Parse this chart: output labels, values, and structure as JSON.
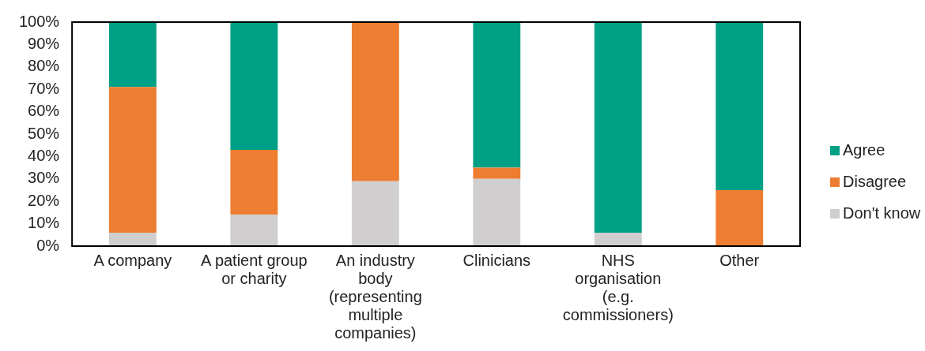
{
  "chart_data": {
    "type": "bar",
    "stacked": true,
    "categories": [
      "A company",
      "A patient group or charity",
      "An industry body (representing multiple companies)",
      "Clinicians",
      "NHS organisation (e.g. commissioners)",
      "Other"
    ],
    "series": [
      {
        "name": "Don't know",
        "color": "#d0cece",
        "values": [
          6,
          14,
          29,
          30,
          6,
          0
        ]
      },
      {
        "name": "Disagree",
        "color": "#ed7d31",
        "values": [
          65,
          29,
          71,
          5,
          0,
          25
        ]
      },
      {
        "name": "Agree",
        "color": "#00a086",
        "values": [
          29,
          57,
          0,
          65,
          94,
          75
        ]
      }
    ],
    "ylim": [
      0,
      100
    ],
    "yticks": [
      {
        "value": 0,
        "label": "0%"
      },
      {
        "value": 10,
        "label": "10%"
      },
      {
        "value": 20,
        "label": "20%"
      },
      {
        "value": 30,
        "label": "30%"
      },
      {
        "value": 40,
        "label": "40%"
      },
      {
        "value": 50,
        "label": "50%"
      },
      {
        "value": 60,
        "label": "60%"
      },
      {
        "value": 70,
        "label": "70%"
      },
      {
        "value": 80,
        "label": "80%"
      },
      {
        "value": 90,
        "label": "90%"
      },
      {
        "value": 100,
        "label": "100%"
      }
    ],
    "legend": "right"
  }
}
